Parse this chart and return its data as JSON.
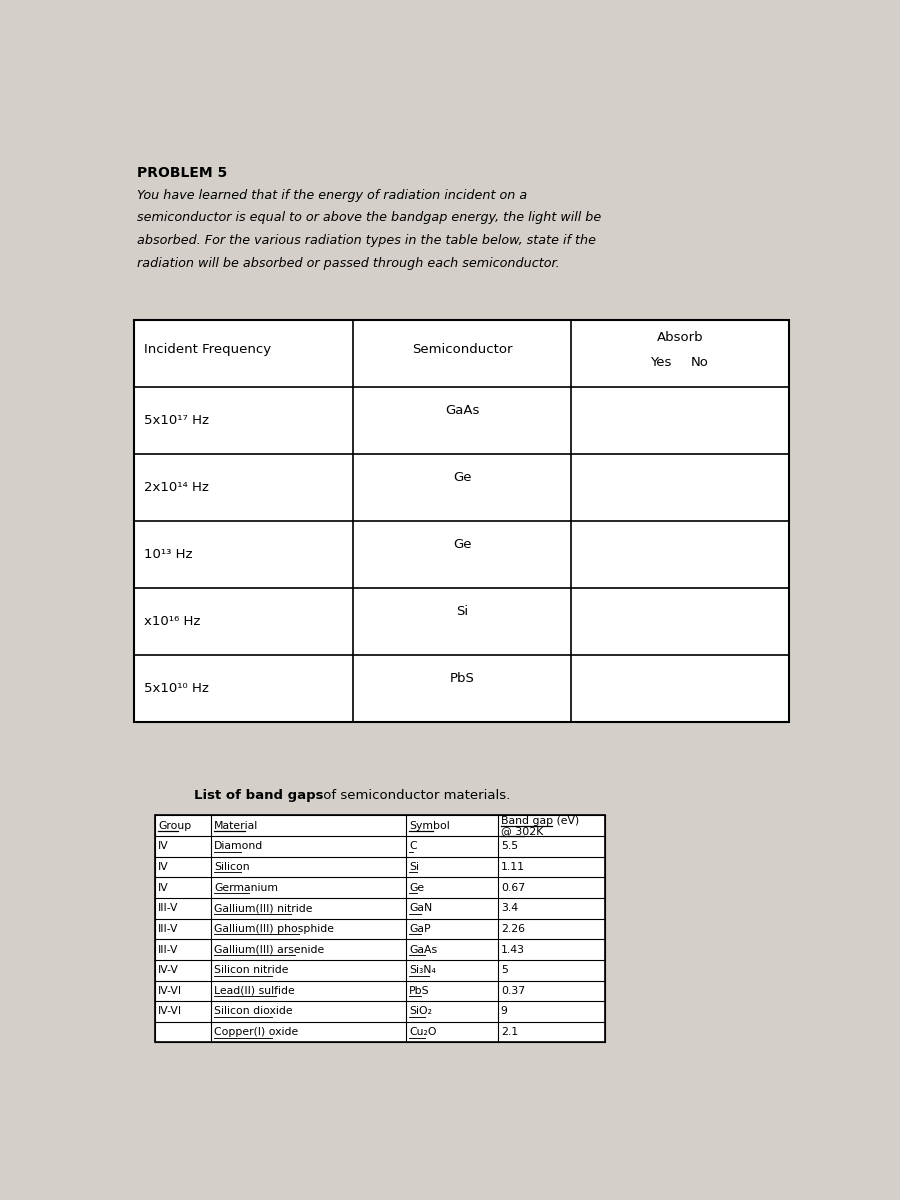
{
  "bg_color": "#d4d0c9",
  "problem_title": "PROBLEM 5",
  "problem_text_line1": "You have learned that if the energy of radiation incident on a",
  "problem_text_line2": "semiconductor is equal to or above the bandgap energy, the light will be",
  "problem_text_line3": "absorbed. For the various radiation types in the table below, state if the",
  "problem_text_line4": "radiation will be absorbed or passed through each semiconductor.",
  "table1_freq": [
    "5x10¹⁷ Hz",
    "2x10¹⁴ Hz",
    "10¹³ Hz",
    "x10¹⁶ Hz",
    "5x10¹⁰ Hz"
  ],
  "table1_semi": [
    "GaAs",
    "Ge",
    "Ge",
    "Si",
    "PbS"
  ],
  "table2_title_bold": "List of band gaps",
  "table2_title_normal": " of semiconductor materials.",
  "table2_groups": [
    "IV",
    "IV",
    "IV",
    "III-V",
    "III-V",
    "III-V",
    "IV-V",
    "IV-VI",
    "IV-VI",
    ""
  ],
  "table2_materials": [
    "Diamond",
    "Silicon",
    "Germanium",
    "Gallium(III) nitride",
    "Gallium(III) phosphide",
    "Gallium(III) arsenide",
    "Silicon nitride",
    "Lead(II) sulfide",
    "Silicon dioxide",
    "Copper(I) oxide"
  ],
  "table2_symbols": [
    "C",
    "Si",
    "Ge",
    "GaN",
    "GaP",
    "GaAs",
    "Si₃N₄",
    "PbS",
    "SiO₂",
    "Cu₂O"
  ],
  "table2_bandgaps": [
    "5.5",
    "1.11",
    "0.67",
    "3.4",
    "2.26",
    "1.43",
    "5",
    "0.37",
    "9",
    "2.1"
  ]
}
